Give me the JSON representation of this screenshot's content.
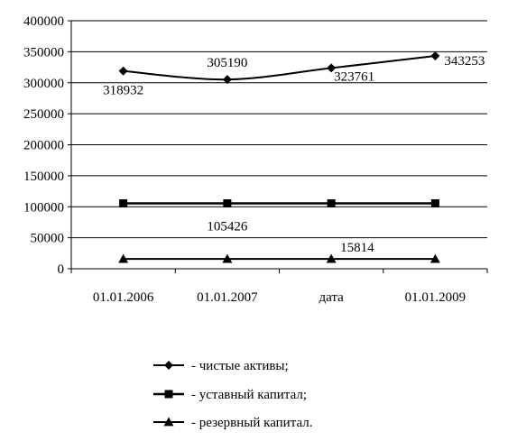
{
  "chart_data": {
    "type": "line",
    "categories": [
      "01.01.2006",
      "01.01.2007",
      "дата",
      "01.01.2009"
    ],
    "ylim": [
      0,
      400000
    ],
    "yticks": [
      0,
      50000,
      100000,
      150000,
      200000,
      250000,
      300000,
      350000,
      400000
    ],
    "grid": true,
    "legend_position": "bottom",
    "series": [
      {
        "name": "- чистые активы;",
        "marker": "diamond",
        "values": [
          318932,
          305190,
          323761,
          343253
        ],
        "labels": [
          {
            "index": 0,
            "text": "318932"
          },
          {
            "index": 1,
            "text": "305190"
          },
          {
            "index": 2,
            "text": "323761"
          },
          {
            "index": 3,
            "text": "343253"
          }
        ]
      },
      {
        "name": "- уставный капитал;",
        "marker": "square",
        "values": [
          105426,
          105426,
          105426,
          105426
        ],
        "labels": [
          {
            "index": 1,
            "text": "105426"
          }
        ]
      },
      {
        "name": "- резервный капитал.",
        "marker": "triangle",
        "values": [
          15814,
          15814,
          15814,
          15814
        ],
        "labels": [
          {
            "index": 2,
            "text": "15814"
          }
        ]
      }
    ]
  }
}
